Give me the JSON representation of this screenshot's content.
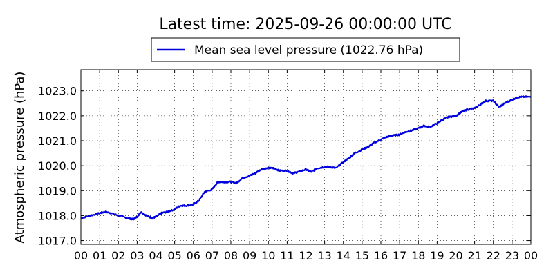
{
  "chart_data": {
    "type": "line",
    "title": "Latest time: 2025-09-26 00:00:00 UTC",
    "ylabel": "Atmospheric pressure (hPa)",
    "xlabel": "",
    "xlim": [
      0,
      24
    ],
    "ylim": [
      1016.85,
      1023.85
    ],
    "grid": true,
    "legend_placement": "top-center",
    "x_tick_labels": [
      "00",
      "01",
      "02",
      "03",
      "04",
      "05",
      "06",
      "07",
      "08",
      "09",
      "10",
      "11",
      "12",
      "13",
      "14",
      "15",
      "16",
      "17",
      "18",
      "19",
      "20",
      "21",
      "22",
      "23",
      "00"
    ],
    "y_ticks": [
      1017.0,
      1018.0,
      1019.0,
      1020.0,
      1021.0,
      1022.0,
      1023.0
    ],
    "y_tick_labels": [
      "1017.0",
      "1018.0",
      "1019.0",
      "1020.0",
      "1021.0",
      "1022.0",
      "1023.0"
    ],
    "series": [
      {
        "name": "Mean sea level pressure (1022.76 hPa)",
        "color": "#0000dd",
        "x": [
          0,
          0.5,
          1,
          1.3,
          1.6,
          2,
          2.5,
          2.8,
          3,
          3.2,
          3.5,
          3.8,
          4,
          4.3,
          4.6,
          5,
          5.3,
          5.6,
          6,
          6.3,
          6.6,
          7,
          7.3,
          7.6,
          8,
          8.3,
          8.6,
          9,
          9.3,
          9.6,
          10,
          10.3,
          10.6,
          11,
          11.3,
          11.6,
          12,
          12.3,
          12.6,
          13,
          13.3,
          13.6,
          14,
          14.3,
          14.6,
          15,
          15.3,
          15.6,
          16,
          16.3,
          16.6,
          17,
          17.3,
          17.6,
          18,
          18.3,
          18.6,
          19,
          19.3,
          19.6,
          20,
          20.3,
          20.6,
          21,
          21.3,
          21.6,
          22,
          22.3,
          22.6,
          23,
          23.3,
          23.6,
          24
        ],
        "y": [
          1017.9,
          1018.0,
          1018.1,
          1018.15,
          1018.1,
          1018.0,
          1017.9,
          1017.85,
          1017.95,
          1018.15,
          1018.0,
          1017.9,
          1017.95,
          1018.1,
          1018.15,
          1018.25,
          1018.4,
          1018.4,
          1018.45,
          1018.6,
          1018.95,
          1019.05,
          1019.35,
          1019.35,
          1019.35,
          1019.3,
          1019.5,
          1019.6,
          1019.7,
          1019.85,
          1019.9,
          1019.9,
          1019.8,
          1019.8,
          1019.7,
          1019.75,
          1019.85,
          1019.75,
          1019.9,
          1019.95,
          1019.95,
          1019.9,
          1020.15,
          1020.3,
          1020.5,
          1020.65,
          1020.75,
          1020.9,
          1021.05,
          1021.15,
          1021.2,
          1021.25,
          1021.35,
          1021.4,
          1021.5,
          1021.6,
          1021.55,
          1021.7,
          1021.85,
          1021.95,
          1022.0,
          1022.15,
          1022.25,
          1022.3,
          1022.45,
          1022.6,
          1022.6,
          1022.35,
          1022.5,
          1022.65,
          1022.75,
          1022.76,
          1022.76
        ]
      }
    ]
  }
}
